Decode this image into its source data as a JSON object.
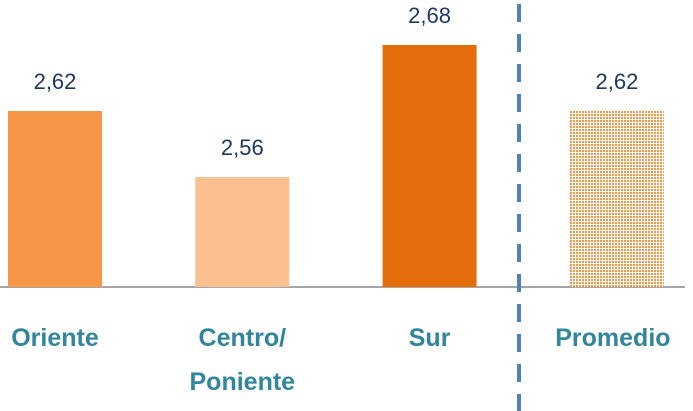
{
  "chart_data": {
    "type": "bar",
    "categories": [
      "Oriente",
      "Centro/ Poniente",
      "Sur",
      "Promedio"
    ],
    "values": [
      2.62,
      2.56,
      2.68,
      2.62
    ],
    "value_labels": [
      "2,62",
      "2,56",
      "2,68",
      "2,62"
    ],
    "colors": [
      "#f79646",
      "#fac090",
      "#e46c0a",
      "#f79646"
    ],
    "patterned": [
      false,
      false,
      false,
      true
    ],
    "ylim": [
      2.46,
      2.72
    ]
  }
}
